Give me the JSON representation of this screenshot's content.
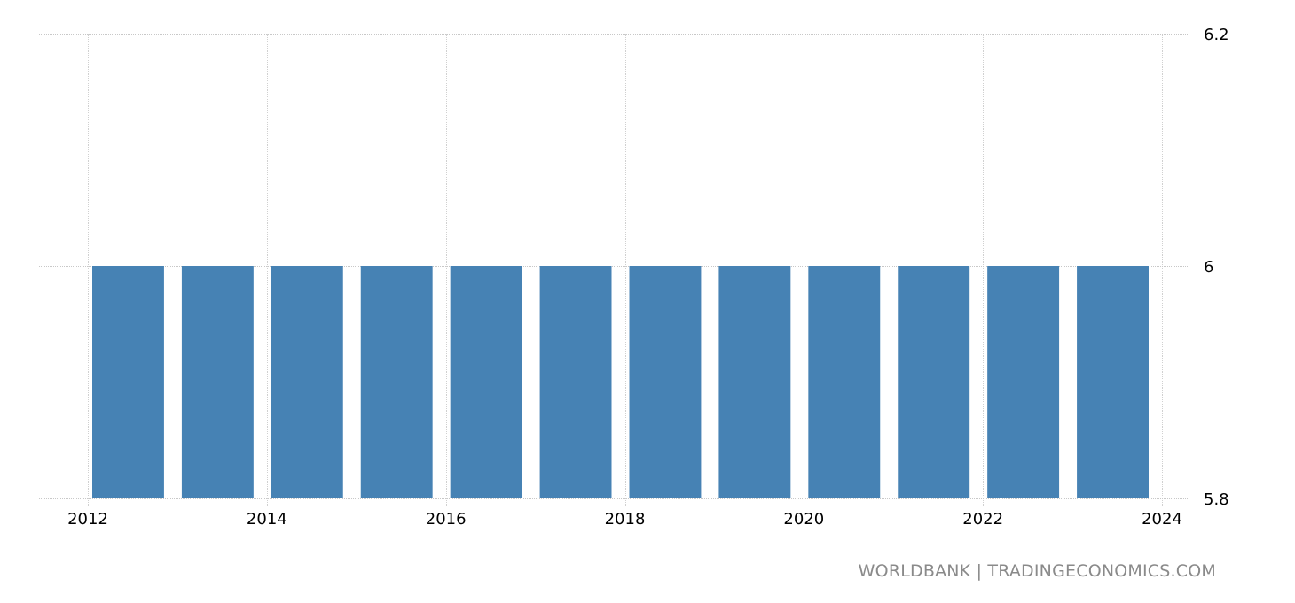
{
  "chart_data": {
    "type": "bar",
    "title": "",
    "xlabel": "",
    "ylabel": "",
    "categories": [
      "2012",
      "2013",
      "2014",
      "2015",
      "2016",
      "2017",
      "2018",
      "2019",
      "2020",
      "2021",
      "2022",
      "2023"
    ],
    "values": [
      6,
      6,
      6,
      6,
      6,
      6,
      6,
      6,
      6,
      6,
      6,
      6
    ],
    "ylim": [
      5.8,
      6.2
    ],
    "yticks": [
      "5.8",
      "6",
      "6.2"
    ],
    "xlim": [
      2012,
      2024
    ],
    "xticks": [
      "2012",
      "2014",
      "2016",
      "2018",
      "2020",
      "2022",
      "2024"
    ],
    "grid": true,
    "bar_color": "#4682B4",
    "y_axis_position": "right"
  },
  "footer": {
    "source": "WORLDBANK | TRADINGECONOMICS.COM"
  }
}
